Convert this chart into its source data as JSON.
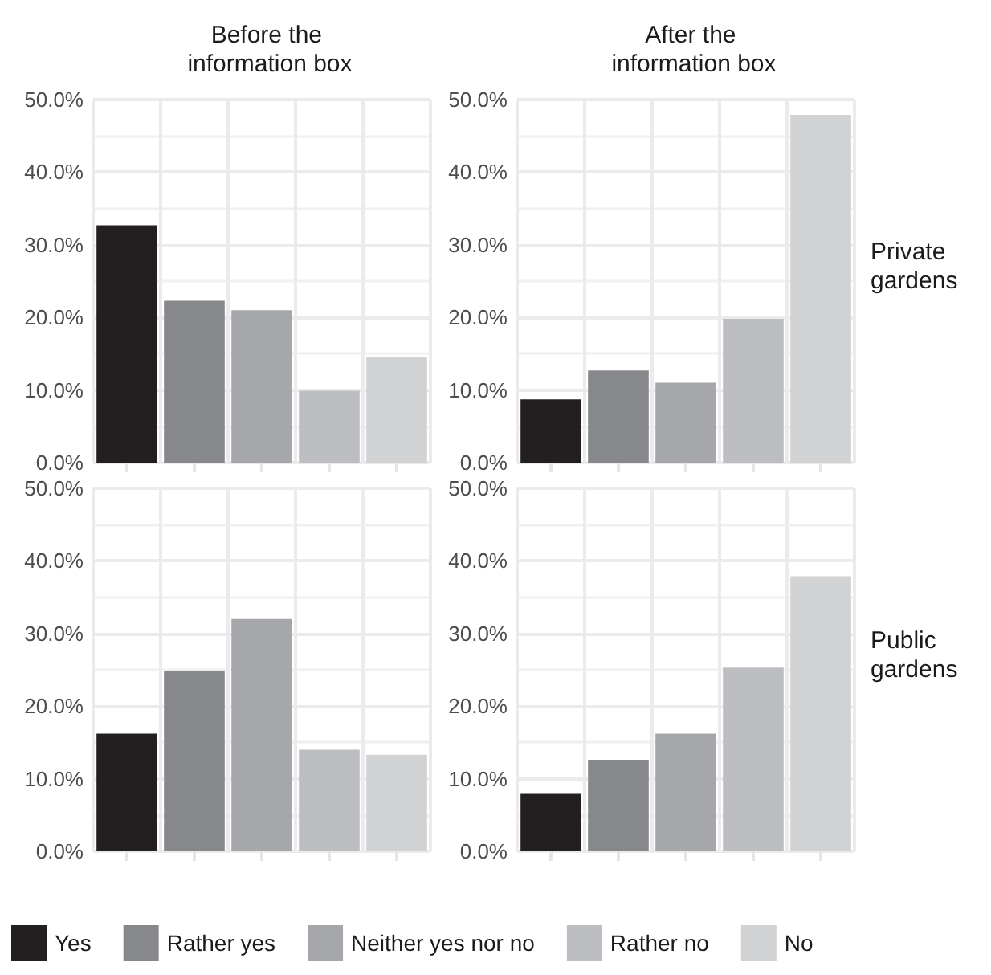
{
  "chart_data": [
    {
      "type": "bar",
      "title": "Before the information box",
      "categories": [
        null,
        null,
        null,
        null,
        null
      ],
      "values": [
        32.7,
        22.3,
        21.0,
        9.9,
        14.6
      ],
      "colors": [
        "#231f20",
        "#87888c",
        "#a6a7aa",
        "#bdbec1",
        "#d1d2d4"
      ],
      "ylim": [
        0,
        50
      ],
      "yticks": [
        {
          "value": 0,
          "label": "0.0%"
        },
        {
          "value": 10,
          "label": "10.0%"
        },
        {
          "value": 20,
          "label": "20.0%"
        },
        {
          "value": 30,
          "label": "30.0%"
        },
        {
          "value": 40,
          "label": "40.0%"
        },
        {
          "value": 50,
          "label": "50.0%"
        }
      ],
      "grid": true,
      "tick_labels": "y"
    },
    {
      "type": "bar",
      "title": "After the information box",
      "y2label": "Private gardens",
      "categories": [
        null,
        null,
        null,
        null,
        null
      ],
      "values": [
        8.7,
        12.7,
        11.0,
        19.8,
        47.9
      ],
      "colors": [
        "#231f20",
        "#87888c",
        "#a6a7aa",
        "#bdbec1",
        "#d1d2d4"
      ],
      "ylim": [
        0,
        50
      ],
      "yticks": [
        {
          "value": 0,
          "label": "0.0%"
        },
        {
          "value": 10,
          "label": "10.0%"
        },
        {
          "value": 20,
          "label": "20.0%"
        },
        {
          "value": 30,
          "label": "30.0%"
        },
        {
          "value": 40,
          "label": "40.0%"
        },
        {
          "value": 50,
          "label": "50.0%"
        }
      ],
      "grid": true,
      "tick_labels": "y"
    },
    {
      "type": "bar",
      "categories": [
        null,
        null,
        null,
        null,
        null
      ],
      "series": [
        {
          "name": "Yes",
          "color": "#231f20",
          "values": [
            16.2,
            null,
            null,
            null,
            null
          ]
        },
        {
          "name": "Rather yes",
          "color": "#87888c",
          "values": [
            null,
            24.8,
            null,
            null,
            null
          ]
        },
        {
          "name": "Neither yes nor no",
          "color": "#a6a7aa",
          "values": [
            null,
            null,
            32.0,
            null,
            null
          ]
        },
        {
          "name": "Rather no",
          "color": "#bdbec1",
          "values": [
            null,
            null,
            null,
            14.0,
            null
          ]
        },
        {
          "name": "No",
          "color": "#d1d2d4",
          "values": [
            null,
            null,
            null,
            null,
            13.3
          ]
        }
      ],
      "ylim": [
        0,
        50
      ],
      "yticks": [
        {
          "value": 0,
          "label": "0.0%"
        },
        {
          "value": 10,
          "label": "10.0%"
        },
        {
          "value": 20,
          "label": "20.0%"
        },
        {
          "value": 30,
          "label": "30.0%"
        },
        {
          "value": 40,
          "label": "40.0%"
        },
        {
          "value": 50,
          "label": "50.0%"
        }
      ],
      "grid": true,
      "tick_labels": "y",
      "legend": "bottom"
    },
    {
      "type": "bar",
      "y2label": "Public gardens",
      "categories": [
        null,
        null,
        null,
        null,
        null
      ],
      "values": [
        7.9,
        12.6,
        16.2,
        25.3,
        37.9
      ],
      "colors": [
        "#231f20",
        "#87888c",
        "#a6a7aa",
        "#bdbec1",
        "#d1d2d4"
      ],
      "ylim": [
        0,
        50
      ],
      "yticks": [
        {
          "value": 0,
          "label": "0.0%"
        },
        {
          "value": 10,
          "label": "10.0%"
        },
        {
          "value": 20,
          "label": "20.0%"
        },
        {
          "value": 30,
          "label": "30.0%"
        },
        {
          "value": 40,
          "label": "40.0%"
        },
        {
          "value": 50,
          "label": "50.0%"
        }
      ],
      "grid": true,
      "tick_labels": "y"
    }
  ]
}
